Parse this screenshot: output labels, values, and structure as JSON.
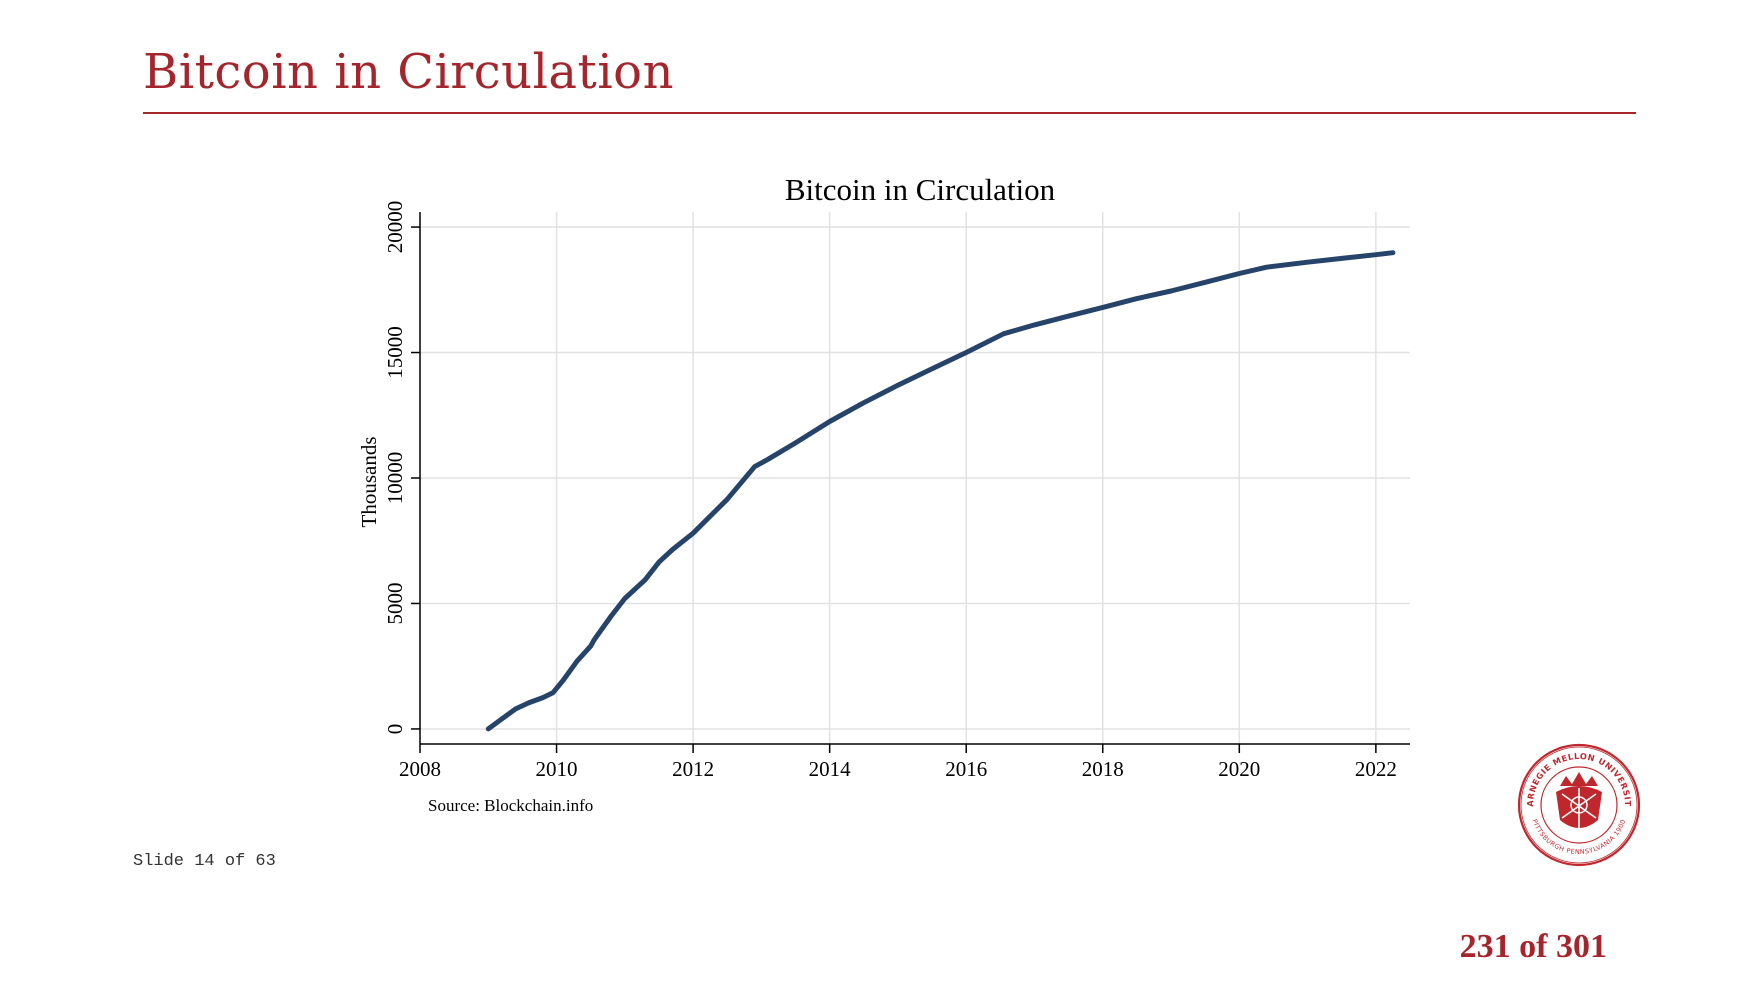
{
  "slide": {
    "title": "Bitcoin in Circulation",
    "counter": "Slide 14 of 63",
    "page_number": "231 of 301",
    "accent_color": "#a4262c",
    "seal": {
      "top_text": "CARNEGIE MELLON UNIVERSITY",
      "bottom_text": "PITTSBURGH PENNSYLVANIA 1900"
    }
  },
  "chart_data": {
    "type": "line",
    "title": "Bitcoin in Circulation",
    "xlabel": "",
    "ylabel": "Thousands",
    "source_note": "Source: Blockchain.info",
    "xlim": [
      2008,
      2022.5
    ],
    "ylim": [
      -600,
      20600
    ],
    "x_ticks": [
      2008,
      2010,
      2012,
      2014,
      2016,
      2018,
      2020,
      2022
    ],
    "y_ticks": [
      0,
      5000,
      10000,
      15000,
      20000
    ],
    "grid": true,
    "line_color": "#26446a",
    "series": [
      {
        "x": [
          2009.0,
          2009.2,
          2009.4,
          2009.6,
          2009.8,
          2009.95,
          2010.1,
          2010.3,
          2010.5,
          2010.55,
          2010.8,
          2011.0,
          2011.3,
          2011.5,
          2011.7,
          2012.0,
          2012.5,
          2012.9,
          2013.1,
          2013.5,
          2014.0,
          2014.5,
          2015.0,
          2015.5,
          2016.0,
          2016.55,
          2017.0,
          2017.5,
          2018.0,
          2018.5,
          2019.0,
          2019.5,
          2020.0,
          2020.4,
          2021.0,
          2021.5,
          2022.0,
          2022.25
        ],
        "y": [
          0,
          400,
          800,
          1050,
          1250,
          1450,
          1950,
          2700,
          3300,
          3550,
          4500,
          5200,
          5950,
          6650,
          7150,
          7800,
          9150,
          10450,
          10750,
          11400,
          12250,
          13000,
          13700,
          14350,
          15000,
          15750,
          16100,
          16450,
          16800,
          17150,
          17450,
          17800,
          18150,
          18400,
          18600,
          18750,
          18900,
          18980
        ]
      }
    ]
  }
}
